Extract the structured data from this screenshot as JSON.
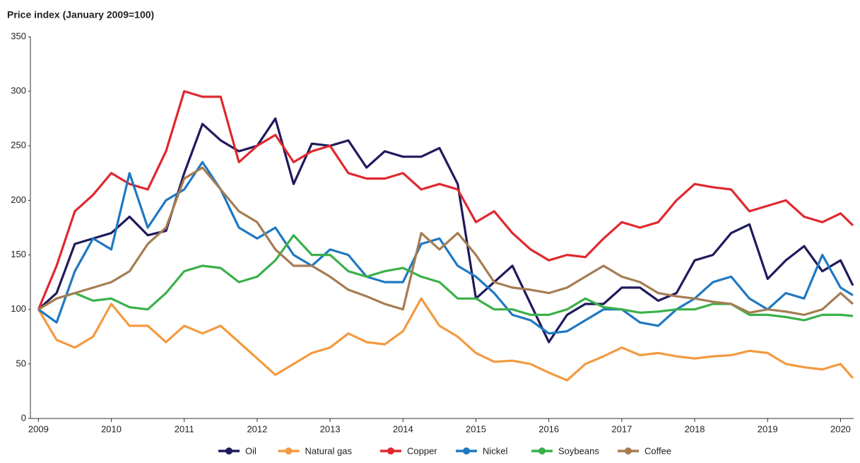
{
  "chart_data": {
    "type": "line",
    "title": "Price index (January 2009=100)",
    "x": [
      2009,
      2009.25,
      2009.5,
      2009.75,
      2010,
      2010.25,
      2010.5,
      2010.75,
      2011,
      2011.25,
      2011.5,
      2011.75,
      2012,
      2012.25,
      2012.5,
      2012.75,
      2013,
      2013.25,
      2013.5,
      2013.75,
      2014,
      2014.25,
      2014.5,
      2014.75,
      2015,
      2015.25,
      2015.5,
      2015.75,
      2016,
      2016.25,
      2016.5,
      2016.75,
      2017,
      2017.25,
      2017.5,
      2017.75,
      2018,
      2018.25,
      2018.5,
      2018.75,
      2019,
      2019.25,
      2019.5,
      2019.75,
      2020,
      2020.17
    ],
    "xlim": [
      2008.89,
      2020.17
    ],
    "xticks": [
      2009,
      2010,
      2011,
      2012,
      2013,
      2014,
      2015,
      2016,
      2017,
      2018,
      2019,
      2020
    ],
    "ylim": [
      0,
      350
    ],
    "yticks": [
      0,
      50,
      100,
      150,
      200,
      250,
      300,
      350
    ],
    "grid": false,
    "series": [
      {
        "name": "Oil",
        "color": "#1f1a5c",
        "values": [
          100,
          115,
          160,
          165,
          170,
          185,
          168,
          172,
          225,
          270,
          255,
          245,
          250,
          275,
          215,
          252,
          250,
          255,
          230,
          245,
          240,
          240,
          248,
          215,
          110,
          125,
          140,
          105,
          70,
          95,
          105,
          105,
          120,
          120,
          108,
          115,
          145,
          150,
          170,
          178,
          128,
          145,
          158,
          135,
          145,
          122
        ]
      },
      {
        "name": "Natural gas",
        "color": "#f39a40",
        "values": [
          100,
          72,
          65,
          75,
          105,
          85,
          85,
          70,
          85,
          78,
          85,
          70,
          55,
          40,
          50,
          60,
          65,
          78,
          70,
          68,
          80,
          110,
          85,
          75,
          60,
          52,
          53,
          50,
          42,
          35,
          50,
          57,
          65,
          58,
          60,
          57,
          55,
          57,
          58,
          62,
          60,
          50,
          47,
          45,
          50,
          37
        ]
      },
      {
        "name": "Copper",
        "color": "#e0282e",
        "values": [
          100,
          140,
          190,
          205,
          225,
          215,
          210,
          245,
          300,
          295,
          295,
          235,
          250,
          260,
          235,
          245,
          250,
          225,
          220,
          220,
          225,
          210,
          215,
          210,
          180,
          190,
          170,
          155,
          145,
          150,
          148,
          165,
          180,
          175,
          180,
          200,
          215,
          212,
          210,
          190,
          195,
          200,
          185,
          180,
          188,
          177
        ]
      },
      {
        "name": "Nickel",
        "color": "#1f78c1",
        "values": [
          100,
          88,
          135,
          165,
          155,
          225,
          175,
          200,
          210,
          235,
          210,
          175,
          165,
          175,
          150,
          140,
          155,
          150,
          130,
          125,
          125,
          160,
          165,
          140,
          130,
          115,
          95,
          90,
          78,
          80,
          90,
          100,
          100,
          88,
          85,
          100,
          110,
          125,
          130,
          110,
          100,
          115,
          110,
          150,
          120,
          113
        ]
      },
      {
        "name": "Soybeans",
        "color": "#3ab04a",
        "values": [
          100,
          110,
          115,
          108,
          110,
          102,
          100,
          115,
          135,
          140,
          138,
          125,
          130,
          145,
          168,
          150,
          150,
          135,
          130,
          135,
          138,
          130,
          125,
          110,
          110,
          100,
          100,
          95,
          95,
          100,
          110,
          102,
          100,
          97,
          98,
          100,
          100,
          105,
          105,
          95,
          95,
          93,
          90,
          95,
          95,
          94
        ]
      },
      {
        "name": "Coffee",
        "color": "#a57c52",
        "values": [
          100,
          110,
          115,
          120,
          125,
          135,
          160,
          175,
          220,
          230,
          210,
          190,
          180,
          155,
          140,
          140,
          130,
          118,
          112,
          105,
          100,
          170,
          155,
          170,
          150,
          125,
          120,
          118,
          115,
          120,
          130,
          140,
          130,
          125,
          115,
          112,
          110,
          107,
          105,
          97,
          100,
          98,
          95,
          100,
          115,
          105
        ]
      }
    ]
  }
}
